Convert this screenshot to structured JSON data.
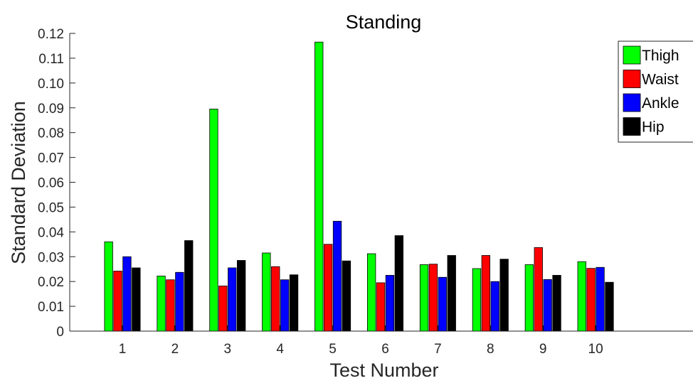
{
  "chart_data": {
    "type": "bar",
    "title": "Standing",
    "xlabel": "Test Number",
    "ylabel": "Standard Deviation",
    "categories": [
      "1",
      "2",
      "3",
      "4",
      "5",
      "6",
      "7",
      "8",
      "9",
      "10"
    ],
    "ylim": [
      0,
      0.12
    ],
    "yticks": [
      "0",
      "0.01",
      "0.02",
      "0.03",
      "0.04",
      "0.05",
      "0.06",
      "0.07",
      "0.08",
      "0.09",
      "0.10",
      "0.11",
      "0.12"
    ],
    "series": [
      {
        "name": "Thigh",
        "color": "#00ff00",
        "values": [
          0.036,
          0.0222,
          0.0895,
          0.0315,
          0.1165,
          0.0312,
          0.0268,
          0.0252,
          0.0268,
          0.028
        ]
      },
      {
        "name": "Waist",
        "color": "#ff0000",
        "values": [
          0.0242,
          0.0207,
          0.0182,
          0.026,
          0.035,
          0.0195,
          0.027,
          0.0305,
          0.0337,
          0.0253
        ]
      },
      {
        "name": "Ankle",
        "color": "#0000ff",
        "values": [
          0.03,
          0.0237,
          0.0255,
          0.0207,
          0.0443,
          0.0225,
          0.0217,
          0.02,
          0.0208,
          0.0257
        ]
      },
      {
        "name": "Hip",
        "color": "#000000",
        "values": [
          0.0255,
          0.0365,
          0.0285,
          0.0227,
          0.0283,
          0.0385,
          0.0305,
          0.029,
          0.0225,
          0.0197
        ]
      }
    ],
    "grid": false,
    "legend": "top-right"
  }
}
